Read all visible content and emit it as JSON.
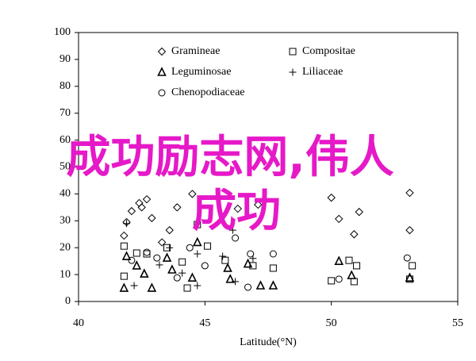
{
  "chart_data": {
    "type": "scatter",
    "x_label": "Latitude(°N)",
    "xlim": [
      40,
      55
    ],
    "xticks": [
      40,
      45,
      50,
      55
    ],
    "ylim": [
      0,
      100
    ],
    "yticks": [
      0,
      10,
      20,
      30,
      40,
      50,
      60,
      70,
      80,
      90,
      100
    ],
    "legend": "upper left",
    "watermark": [
      "成功励志网,伟人",
      "成功"
    ],
    "series": [
      {
        "name": "Gramineae",
        "marker": "diamond",
        "color": "#000000",
        "x": [
          42.4,
          42.5,
          42.7,
          42.1,
          41.9,
          41.8,
          44.5,
          43.9,
          46.3,
          47.1,
          50.0,
          50.3,
          51.1,
          53.1,
          53.1,
          50.9,
          42.9,
          43.3,
          43.6
        ],
        "y": [
          36.6,
          35,
          38,
          33.6,
          29.5,
          24.5,
          40,
          35,
          34.5,
          36,
          38.6,
          30.7,
          33.3,
          40.4,
          26.5,
          25,
          31,
          22,
          26.5
        ]
      },
      {
        "name": "Compositae",
        "marker": "square",
        "color": "#000000",
        "x": [
          41.8,
          42.3,
          42.7,
          43.5,
          44.1,
          44.7,
          45.1,
          45.8,
          46.9,
          47.7,
          41.8,
          44.3,
          50.7,
          51.0,
          50.9,
          53.2,
          53.1,
          50.0
        ],
        "y": [
          20.6,
          18,
          17.7,
          20,
          14.7,
          28.6,
          20.6,
          15.3,
          13.3,
          12.4,
          9.4,
          5,
          15.3,
          13.3,
          7.4,
          13.3,
          8.3,
          7.7
        ]
      },
      {
        "name": "Leguminosae",
        "marker": "triangle",
        "color": "#000000",
        "x": [
          41.9,
          42.3,
          42.6,
          43.5,
          43.7,
          44.7,
          44.5,
          46.0,
          46.7,
          47.2,
          50.3,
          50.8,
          53.1,
          41.8,
          42.9,
          45.9,
          47.7
        ],
        "y": [
          16.8,
          13.3,
          10.3,
          16.2,
          11.8,
          22,
          8.8,
          8.3,
          14,
          5.9,
          15,
          9.7,
          8.8,
          5,
          5,
          12.4,
          5.9
        ]
      },
      {
        "name": "Liliaceae",
        "marker": "plus",
        "color": "#000000",
        "x": [
          41.9,
          43.2,
          43.6,
          44.7,
          45.7,
          46.1,
          46.9,
          46.2,
          44.1,
          42.2,
          44.7
        ],
        "y": [
          29,
          13.6,
          20,
          17.7,
          16.8,
          26.5,
          16,
          7.4,
          10.6,
          5.9,
          5.9
        ]
      },
      {
        "name": "Chenopodiaceae",
        "marker": "circle",
        "color": "#000000",
        "x": [
          42.7,
          43.1,
          43.9,
          45.0,
          46.2,
          46.8,
          47.7,
          53.0,
          50.3,
          46.7,
          42.1,
          44.4
        ],
        "y": [
          18.3,
          16.2,
          8.8,
          13.3,
          23.6,
          17.7,
          17.7,
          16.2,
          8.3,
          5.3,
          15.3,
          20
        ]
      }
    ]
  }
}
